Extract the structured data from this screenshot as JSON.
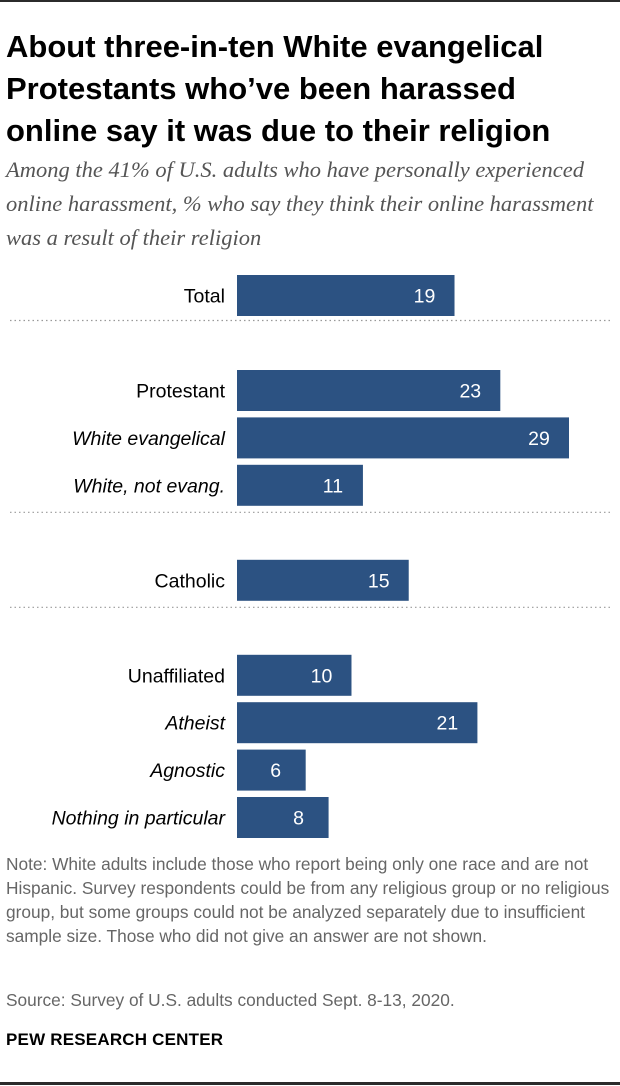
{
  "title": "About three-in-ten White evangelical Protestants who’ve been harassed online say it was due to their religion",
  "subtitle": "Among the 41% of U.S. adults who have personally experienced online harassment, % who say they think their online harassment was a result of their religion",
  "note": "Note: White adults include those who report being only one race and are not Hispanic. Survey respondents could be from any religious group or no religious group, but some groups could not be analyzed separately due to insufficient sample size. Those who did not give an answer are not shown.",
  "source": "Source: Survey of U.S. adults conducted Sept. 8-13, 2020.",
  "logo": "PEW RESEARCH CENTER",
  "colors": {
    "bar": "#2c5282",
    "bar_label": "#ffffff",
    "divider": "#999999"
  },
  "chart_data": {
    "type": "bar",
    "orientation": "horizontal",
    "categories": [
      "Total",
      "Protestant",
      "White evangelical",
      "White, not evang.",
      "Catholic",
      "Unaffiliated",
      "Atheist",
      "Agnostic",
      "Nothing in particular"
    ],
    "values": [
      19,
      23,
      29,
      11,
      15,
      10,
      21,
      6,
      8
    ],
    "italic_categories": [
      "White evangelical",
      "White, not evang.",
      "Atheist",
      "Agnostic",
      "Nothing in particular"
    ],
    "groups": [
      [
        "Total"
      ],
      [
        "Protestant",
        "White evangelical",
        "White, not evang."
      ],
      [
        "Catholic"
      ],
      [
        "Unaffiliated",
        "Atheist",
        "Agnostic",
        "Nothing in particular"
      ]
    ],
    "xlim": [
      0,
      29
    ],
    "data_labels": true,
    "grid": false,
    "legend": "none"
  }
}
